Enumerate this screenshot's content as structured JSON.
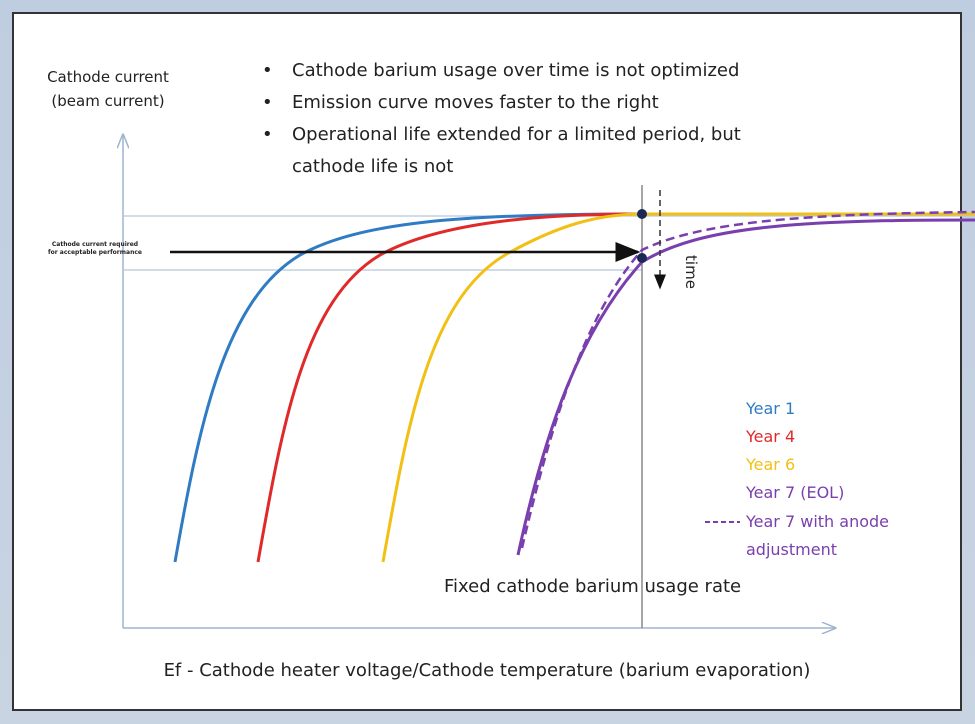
{
  "y_axis_label": [
    "Cathode current",
    "(beam current)"
  ],
  "bullets": [
    "Cathode barium usage over time is not optimized",
    "Emission curve moves faster to the right",
    "Operational life extended for a limited period, but",
    "cathode life is not"
  ],
  "required_label": [
    "Cathode current required",
    "for acceptable performance"
  ],
  "time_label": "time",
  "legend": [
    "Year 1",
    "Year 4",
    "Year 6",
    "Year 7 (EOL)",
    "Year 7 with anode",
    "adjustment"
  ],
  "caption": "Fixed cathode barium usage rate",
  "x_axis_label": "Ef - Cathode heater voltage/Cathode temperature (barium evaporation)"
}
